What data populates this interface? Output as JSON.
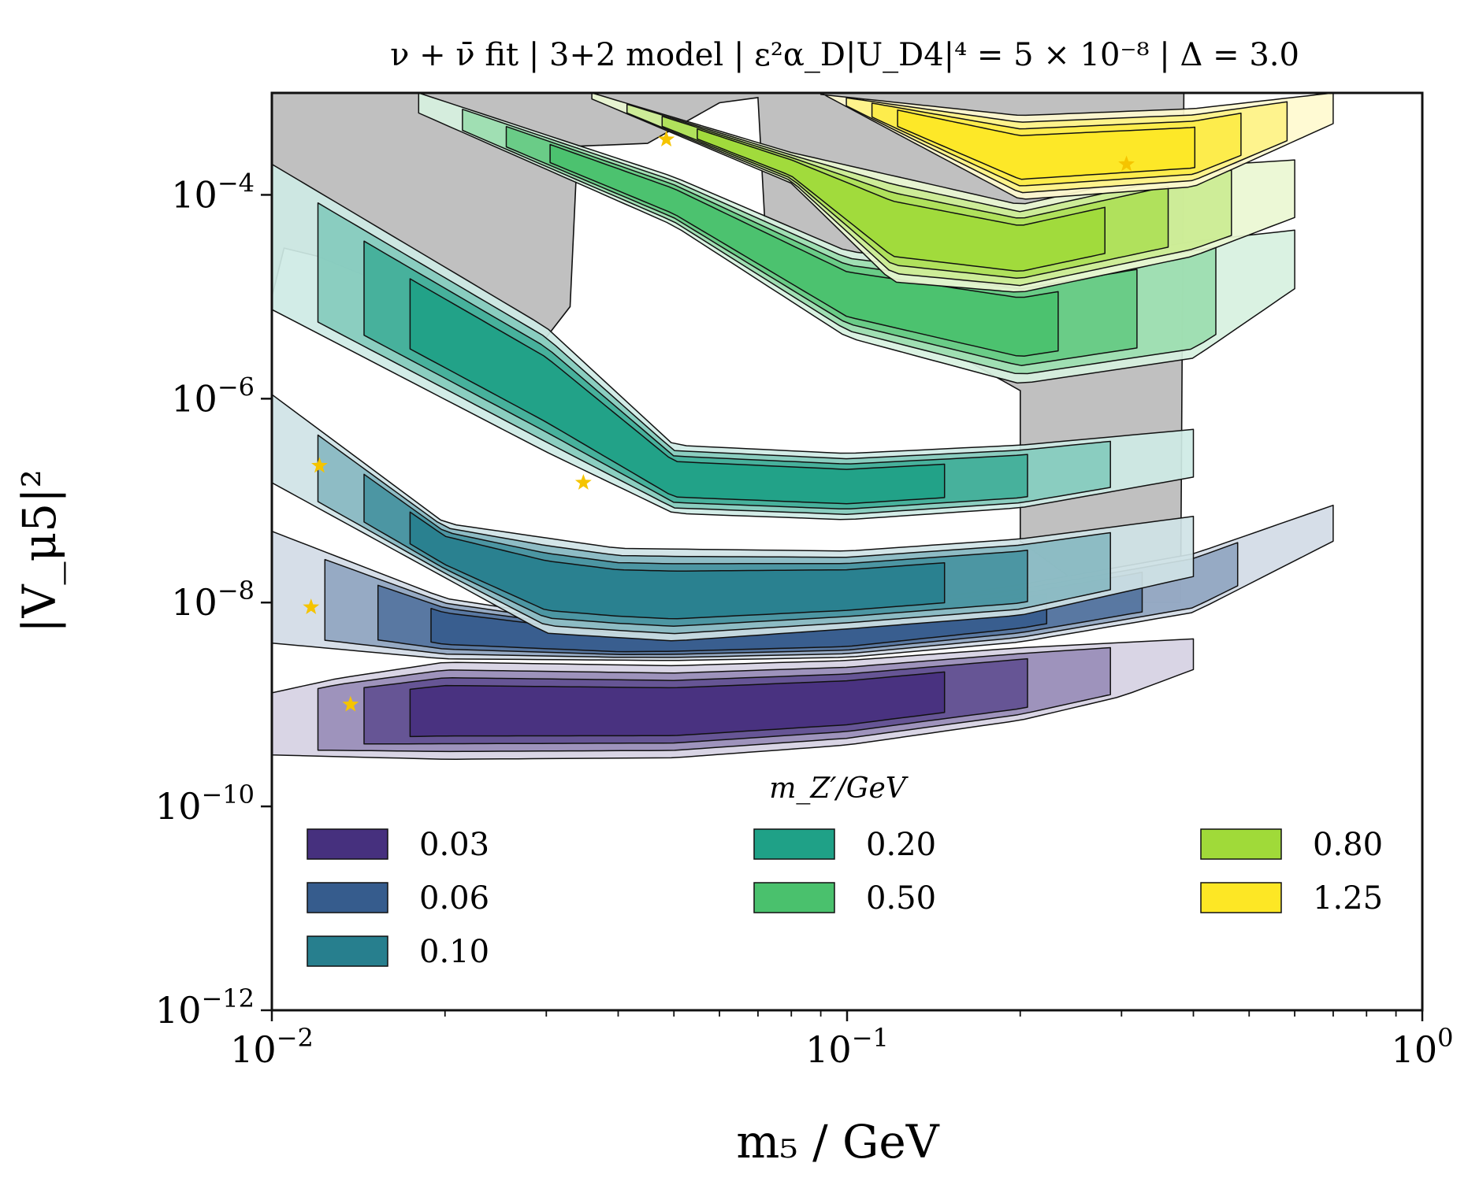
{
  "chart_data": {
    "type": "contour",
    "title": "ν + ν̄ fit | 3+2 model | ε²α_D|U_D4|⁴ = 5 × 10⁻⁸ | Δ = 3.0",
    "xlabel": "m₅ / GeV",
    "ylabel": "|V_μ5|²",
    "xscale": "log",
    "yscale": "log",
    "xlim": [
      0.01,
      1
    ],
    "ylim": [
      1e-12,
      0.001
    ],
    "x_ticks": [
      {
        "value": 0.01,
        "base": "10",
        "exp": "−2"
      },
      {
        "value": 0.1,
        "base": "10",
        "exp": "−1"
      },
      {
        "value": 1,
        "base": "10",
        "exp": "0"
      }
    ],
    "y_ticks": [
      {
        "value": 1e-12,
        "base": "10",
        "exp": "−12"
      },
      {
        "value": 1e-10,
        "base": "10",
        "exp": "−10"
      },
      {
        "value": 1e-08,
        "base": "10",
        "exp": "−8"
      },
      {
        "value": 1e-06,
        "base": "10",
        "exp": "−6"
      },
      {
        "value": 0.0001,
        "base": "10",
        "exp": "−4"
      }
    ],
    "legend_title": "m_Z′/GeV",
    "legend_position": "lower",
    "series": [
      {
        "name": "0.03",
        "color": "#46307e",
        "best_fit": [
          0.0137,
          1e-09
        ],
        "upper_edge": [
          [
            0.01,
            1.3e-09
          ],
          [
            0.013,
            1.8e-09
          ],
          [
            0.02,
            2.6e-09
          ],
          [
            0.05,
            2.4e-09
          ],
          [
            0.1,
            2.7e-09
          ],
          [
            0.2,
            3.6e-09
          ],
          [
            0.4,
            4.4e-09
          ]
        ],
        "lower_edge": [
          [
            0.01,
            3.2e-10
          ],
          [
            0.02,
            2.9e-10
          ],
          [
            0.05,
            3e-10
          ],
          [
            0.1,
            4e-10
          ],
          [
            0.2,
            7e-10
          ],
          [
            0.3,
            1.2e-09
          ],
          [
            0.4,
            2.2e-09
          ]
        ]
      },
      {
        "name": "0.06",
        "color": "#365c8d",
        "best_fit": [
          0.0117,
          9e-09
        ],
        "upper_edge": [
          [
            0.01,
            5e-08
          ],
          [
            0.02,
            1.1e-08
          ],
          [
            0.04,
            6e-09
          ],
          [
            0.1,
            8e-09
          ],
          [
            0.2,
            1.5e-08
          ],
          [
            0.4,
            3e-08
          ],
          [
            0.7,
            9e-08
          ]
        ],
        "lower_edge": [
          [
            0.01,
            4e-09
          ],
          [
            0.02,
            2.8e-09
          ],
          [
            0.05,
            2.7e-09
          ],
          [
            0.1,
            2.9e-09
          ],
          [
            0.2,
            4.1e-09
          ],
          [
            0.4,
            8e-09
          ],
          [
            0.7,
            4e-08
          ]
        ]
      },
      {
        "name": "0.10",
        "color": "#277f8e",
        "best_fit": [
          0.0121,
          2.2e-07
        ],
        "upper_edge": [
          [
            0.01,
            1.1e-06
          ],
          [
            0.02,
            6e-08
          ],
          [
            0.04,
            3.4e-08
          ],
          [
            0.1,
            3.2e-08
          ],
          [
            0.2,
            4.2e-08
          ],
          [
            0.4,
            7e-08
          ],
          [
            0.7,
            1.1e-07
          ]
        ],
        "lower_edge": [
          [
            0.01,
            1.5e-07
          ],
          [
            0.03,
            5e-09
          ],
          [
            0.05,
            4.2e-09
          ],
          [
            0.1,
            5.5e-09
          ],
          [
            0.2,
            7.5e-09
          ],
          [
            0.4,
            1.8e-08
          ]
        ]
      },
      {
        "name": "0.20",
        "color": "#1fa187",
        "best_fit": [
          0.0348,
          1.5e-07
        ],
        "upper_edge": [
          [
            0.01,
            0.0002
          ],
          [
            0.03,
            5e-06
          ],
          [
            0.05,
            3.5e-07
          ],
          [
            0.1,
            2.9e-07
          ],
          [
            0.2,
            3.5e-07
          ],
          [
            0.4,
            5e-07
          ]
        ],
        "lower_edge": [
          [
            0.01,
            7.5e-06
          ],
          [
            0.03,
            3e-07
          ],
          [
            0.05,
            7.5e-08
          ],
          [
            0.1,
            6.5e-08
          ],
          [
            0.2,
            8.5e-08
          ],
          [
            0.4,
            1.7e-07
          ]
        ]
      },
      {
        "name": "0.50",
        "color": "#4ac16d",
        "best_fit": [
          0.0485,
          0.00035
        ],
        "upper_edge": [
          [
            0.018,
            0.001
          ],
          [
            0.05,
            0.00015
          ],
          [
            0.1,
            2.8e-05
          ],
          [
            0.2,
            1.8e-05
          ],
          [
            0.4,
            3.5e-05
          ],
          [
            0.6,
            4.5e-05
          ]
        ],
        "lower_edge": [
          [
            0.015,
            0.001
          ],
          [
            0.05,
            5e-05
          ],
          [
            0.1,
            4e-06
          ],
          [
            0.2,
            1.4e-06
          ],
          [
            0.4,
            2.5e-06
          ],
          [
            0.6,
            1.2e-05
          ]
        ]
      },
      {
        "name": "0.80",
        "color": "#a0da39",
        "best_fit": [
          0.0485,
          0.00035
        ],
        "upper_edge": [
          [
            0.036,
            0.001
          ],
          [
            0.08,
            0.00026
          ],
          [
            0.2,
            8e-05
          ],
          [
            0.4,
            0.00019
          ],
          [
            0.6,
            0.00022
          ]
        ],
        "lower_edge": [
          [
            0.034,
            0.001
          ],
          [
            0.08,
            0.00013
          ],
          [
            0.12,
            1.4e-05
          ],
          [
            0.2,
            1.1e-05
          ],
          [
            0.4,
            2.5e-05
          ],
          [
            0.6,
            6e-05
          ]
        ]
      },
      {
        "name": "1.25",
        "color": "#fde725",
        "best_fit": [
          0.306,
          0.0002
        ],
        "upper_edge": [
          [
            0.085,
            0.001
          ],
          [
            0.2,
            0.0006
          ],
          [
            0.4,
            0.0007
          ],
          [
            0.7,
            0.001
          ]
        ],
        "lower_edge": [
          [
            0.09,
            0.001
          ],
          [
            0.2,
            9e-05
          ],
          [
            0.4,
            0.00012
          ],
          [
            0.7,
            0.0005
          ]
        ]
      }
    ],
    "excluded_region_color": "#c0c0c0",
    "excluded_region_boundary": [
      [
        0.01,
        1e-05
      ],
      [
        0.0105,
        3e-05
      ],
      [
        0.012,
        2.5e-05
      ],
      [
        0.015,
        1.5e-05
      ],
      [
        0.018,
        4.5e-06
      ],
      [
        0.02,
        3.5e-06
      ],
      [
        0.022,
        1.8e-06
      ],
      [
        0.025,
        3e-06
      ],
      [
        0.03,
        4e-06
      ],
      [
        0.033,
        8e-06
      ],
      [
        0.034,
        0.0003
      ],
      [
        0.045,
        0.00032
      ],
      [
        0.06,
        0.0008
      ],
      [
        0.07,
        0.0009
      ],
      [
        0.072,
        5e-05
      ],
      [
        0.1,
        1.2e-05
      ],
      [
        0.15,
        3e-06
      ],
      [
        0.2,
        1.2e-06
      ],
      [
        0.2,
        4e-08
      ],
      [
        0.25,
        1.6e-08
      ],
      [
        0.3,
        1e-08
      ],
      [
        0.38,
        1e-08
      ],
      [
        0.385,
        0.001
      ]
    ]
  }
}
